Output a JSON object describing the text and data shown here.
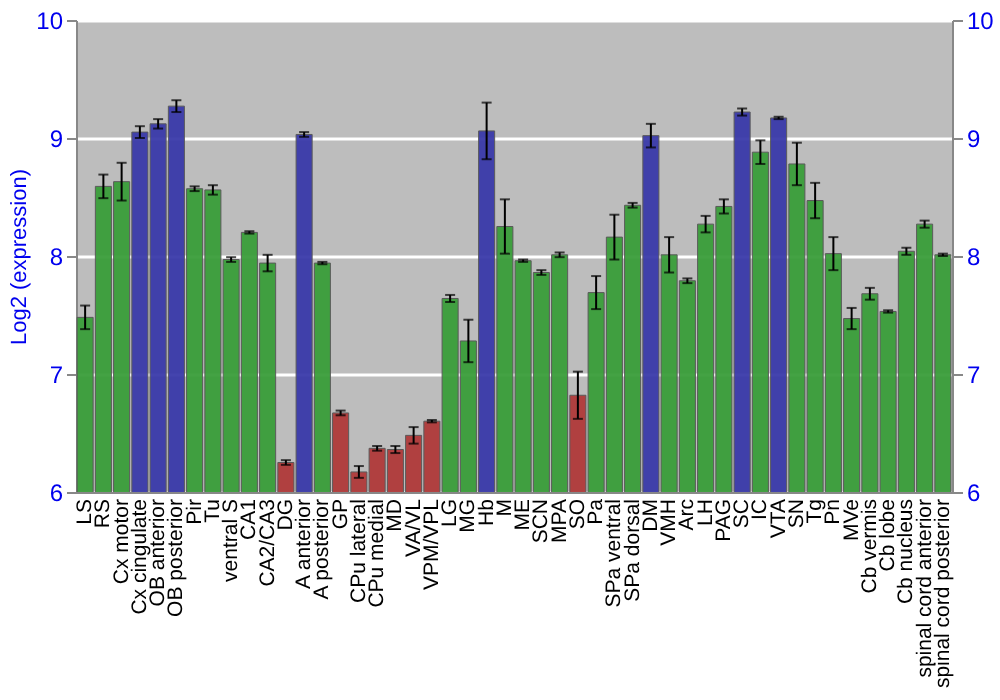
{
  "chart_data": {
    "type": "bar",
    "ylabel": "Log2 (expression)",
    "categories": [
      "LS",
      "RS",
      "Cx motor",
      "Cx cingulate",
      "OB anterior",
      "OB posterior",
      "Pir",
      "Tu",
      "ventral S",
      "CA1",
      "CA2/CA3",
      "DG",
      "A anterior",
      "A posterior",
      "GP",
      "CPu lateral",
      "CPu medial",
      "MD",
      "VA/VL",
      "VPM/VPL",
      "LG",
      "MG",
      "Hb",
      "M",
      "ME",
      "SCN",
      "MPA",
      "SO",
      "Pa",
      "SPa ventral",
      "SPa dorsal",
      "DM",
      "VMH",
      "Arc",
      "LH",
      "PAG",
      "SC",
      "IC",
      "VTA",
      "SN",
      "Tg",
      "Pn",
      "MVe",
      "Cb vermis",
      "Cb lobe",
      "Cb nucleus",
      "spinal cord anterior",
      "spinal cord posterior"
    ],
    "values": [
      7.48,
      8.59,
      8.63,
      9.05,
      9.12,
      9.27,
      8.57,
      8.56,
      7.97,
      8.2,
      7.94,
      6.25,
      9.03,
      7.94,
      6.67,
      6.17,
      6.37,
      6.36,
      6.48,
      6.6,
      7.64,
      7.28,
      9.06,
      8.25,
      7.96,
      7.86,
      8.01,
      6.82,
      7.69,
      8.16,
      8.43,
      9.02,
      8.01,
      7.79,
      8.27,
      8.42,
      9.22,
      8.88,
      9.17,
      8.78,
      8.47,
      8.02,
      7.47,
      7.68,
      7.53,
      8.04,
      8.27,
      8.01
    ],
    "errors": [
      0.1,
      0.1,
      0.16,
      0.05,
      0.04,
      0.05,
      0.02,
      0.04,
      0.02,
      0.01,
      0.07,
      0.02,
      0.02,
      0.01,
      0.02,
      0.05,
      0.02,
      0.03,
      0.07,
      0.01,
      0.03,
      0.18,
      0.24,
      0.23,
      0.01,
      0.02,
      0.02,
      0.2,
      0.14,
      0.19,
      0.02,
      0.1,
      0.15,
      0.02,
      0.07,
      0.06,
      0.03,
      0.1,
      0.01,
      0.18,
      0.15,
      0.14,
      0.09,
      0.05,
      0.01,
      0.03,
      0.03,
      0.01
    ],
    "colors": [
      "#3a9e3a",
      "#3a9e3a",
      "#3a9e3a",
      "#3a3aaa",
      "#3a3aaa",
      "#3a3aaa",
      "#3a9e3a",
      "#3a9e3a",
      "#3a9e3a",
      "#3a9e3a",
      "#3a9e3a",
      "#b03a3a",
      "#3a3aaa",
      "#3a9e3a",
      "#b03a3a",
      "#b03a3a",
      "#b03a3a",
      "#b03a3a",
      "#b03a3a",
      "#b03a3a",
      "#3a9e3a",
      "#3a9e3a",
      "#3a3aaa",
      "#3a9e3a",
      "#3a9e3a",
      "#3a9e3a",
      "#3a9e3a",
      "#b03a3a",
      "#3a9e3a",
      "#3a9e3a",
      "#3a9e3a",
      "#3a3aaa",
      "#3a9e3a",
      "#3a9e3a",
      "#3a9e3a",
      "#3a9e3a",
      "#3a3aaa",
      "#3a9e3a",
      "#3a3aaa",
      "#3a9e3a",
      "#3a9e3a",
      "#3a9e3a",
      "#3a9e3a",
      "#3a9e3a",
      "#3a9e3a",
      "#3a9e3a",
      "#3a9e3a",
      "#3a9e3a"
    ],
    "ylim": [
      6,
      10
    ],
    "yticks": [
      6,
      7,
      8,
      9,
      10
    ],
    "y2lim": [
      6,
      10
    ],
    "y2ticks": [
      6,
      7,
      8,
      9,
      10
    ],
    "grid": "y"
  }
}
